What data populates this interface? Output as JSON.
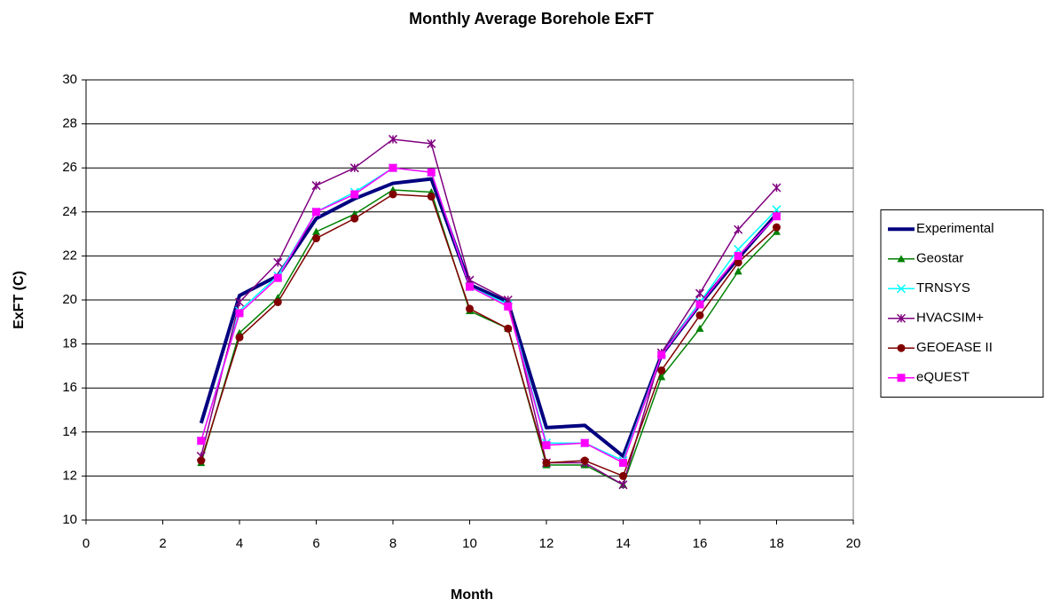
{
  "chart_data": {
    "type": "line",
    "title": "Monthly Average Borehole ExFT",
    "x_label": "Month",
    "y_label": "ExFT (C)",
    "x": [
      3,
      4,
      5,
      6,
      7,
      8,
      9,
      10,
      11,
      12,
      13,
      14,
      15,
      16,
      17,
      18
    ],
    "series": [
      {
        "name": "Experimental",
        "color": "#000080",
        "marker": "none",
        "values": [
          14.4,
          20.2,
          21.1,
          23.7,
          24.6,
          25.3,
          25.5,
          20.7,
          19.9,
          14.2,
          14.3,
          12.9,
          17.5,
          19.8,
          21.9,
          23.9
        ]
      },
      {
        "name": "Geostar",
        "color": "#008000",
        "marker": "triangle",
        "values": [
          12.6,
          18.5,
          20.1,
          23.1,
          23.9,
          25.0,
          24.9,
          19.5,
          18.7,
          12.5,
          12.5,
          11.6,
          16.5,
          18.7,
          21.3,
          23.1
        ]
      },
      {
        "name": "TRNSYS",
        "color": "#00ffff",
        "marker": "x",
        "values": [
          13.6,
          19.5,
          21.1,
          24.0,
          24.9,
          26.0,
          25.8,
          20.6,
          19.8,
          13.5,
          13.5,
          12.7,
          17.5,
          19.9,
          22.3,
          24.1
        ]
      },
      {
        "name": "HVACSIM+",
        "color": "#800080",
        "marker": "star",
        "values": [
          12.9,
          19.9,
          21.7,
          25.2,
          26.0,
          27.3,
          27.1,
          20.9,
          20.0,
          12.6,
          12.6,
          11.6,
          17.6,
          20.3,
          23.2,
          25.1
        ]
      },
      {
        "name": "GEOEASE II",
        "color": "#800000",
        "marker": "circle",
        "values": [
          12.7,
          18.3,
          19.9,
          22.8,
          23.7,
          24.8,
          24.7,
          19.6,
          18.7,
          12.6,
          12.7,
          12.0,
          16.8,
          19.3,
          21.7,
          23.3
        ]
      },
      {
        "name": "eQUEST",
        "color": "#ff00ff",
        "marker": "square",
        "values": [
          13.6,
          19.4,
          21.0,
          24.0,
          24.8,
          26.0,
          25.8,
          20.6,
          19.7,
          13.4,
          13.5,
          12.6,
          17.5,
          19.8,
          22.0,
          23.8
        ]
      }
    ],
    "xlim": [
      0,
      20
    ],
    "xticks": [
      0,
      2,
      4,
      6,
      8,
      10,
      12,
      14,
      16,
      18,
      20
    ],
    "ylim": [
      10,
      30
    ],
    "yticks": [
      10,
      12,
      14,
      16,
      18,
      20,
      22,
      24,
      26,
      28,
      30
    ],
    "grid": true,
    "legend": "right"
  }
}
